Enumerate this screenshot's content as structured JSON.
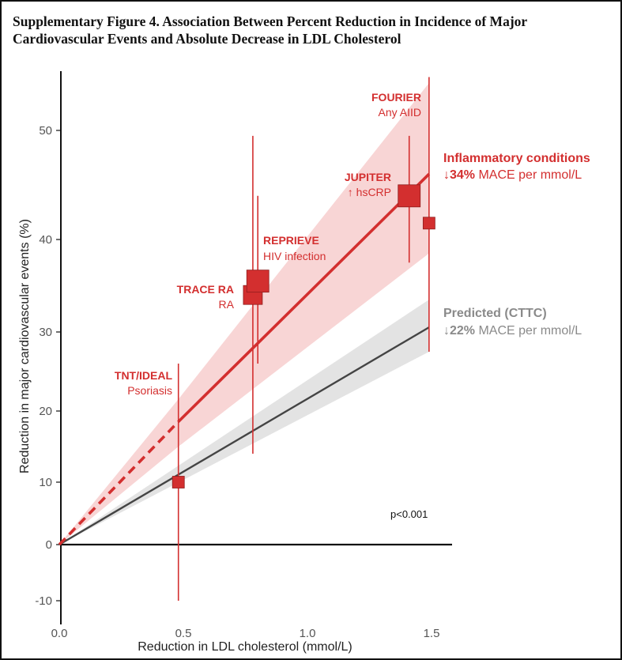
{
  "figure": {
    "title_line1": "Supplementary Figure 4. Association Between Percent Reduction in Incidence of Major",
    "title_line2": "Cardiovascular Events and Absolute Decrease in LDL Cholesterol"
  },
  "chart_data": {
    "type": "scatter",
    "xlabel": "Reduction in LDL cholesterol (mmol/L)",
    "ylabel": "Reduction in major cardiovascular events (%)",
    "xlim": [
      0.0,
      1.6
    ],
    "ylim": [
      -12,
      55
    ],
    "x_scale": "linear",
    "y_scale": "nonlinear (spacing compresses at higher values, as printed)",
    "x_ticks": [
      "0.0",
      "0.5",
      "1.0",
      "1.5"
    ],
    "y_ticks": [
      "-10",
      "0",
      "10",
      "20",
      "30",
      "40",
      "50"
    ],
    "grid": false,
    "colors": {
      "inflammatory": "#d32f2f",
      "predicted": "#444444",
      "band_red": "#f6caca",
      "band_grey": "#dedede"
    },
    "series": [
      {
        "name": "Inflammatory conditions",
        "style": "red regression line (dashed below x=0.48) with shaded confidence band",
        "line": [
          [
            0,
            0
          ],
          [
            0.48,
            18.5
          ],
          [
            1.49,
            46
          ]
        ],
        "band_upper": [
          [
            0.48,
            21.5
          ],
          [
            1.49,
            54
          ]
        ],
        "band_lower": [
          [
            0.48,
            15
          ],
          [
            1.49,
            38.5
          ]
        ]
      },
      {
        "name": "Predicted (CTTC)",
        "style": "dark grey regression line with grey confidence band",
        "line": [
          [
            0,
            0
          ],
          [
            1.49,
            30.5
          ]
        ],
        "band_upper": [
          [
            1.49,
            33.5
          ]
        ],
        "band_lower": [
          [
            1.49,
            27.5
          ]
        ]
      }
    ],
    "points": [
      {
        "x": 0.48,
        "y": 10.0,
        "lo": -10.0,
        "hi": 26.0,
        "size": "small"
      },
      {
        "x": 0.78,
        "y": 34.0,
        "lo": 14.0,
        "hi": 49.5,
        "size": "medium"
      },
      {
        "x": 0.8,
        "y": 35.5,
        "lo": 26.0,
        "hi": 44.0,
        "size": "large"
      },
      {
        "x": 1.41,
        "y": 44.0,
        "lo": 37.5,
        "hi": 49.5,
        "size": "large"
      },
      {
        "x": 1.49,
        "y": 41.5,
        "lo": 27.5,
        "hi": 54.5,
        "size": "small"
      }
    ],
    "annotations": {
      "tnt_ideal_name": "TNT/IDEAL",
      "tnt_ideal_sub": "Psoriasis",
      "trace_name": "TRACE RA",
      "trace_sub": "RA",
      "reprieve_name": "REPRIEVE",
      "reprieve_sub": "HIV infection",
      "jupiter_name": "JUPITER",
      "jupiter_sub": "↑ hsCRP",
      "fourier_name": "FOURIER",
      "fourier_sub": "Any AIID",
      "inflam_title": "Inflammatory conditions",
      "inflam_pct": "↓34%",
      "inflam_rest": " MACE per mmol/L",
      "pred_title": "Predicted (CTTC)",
      "pred_pct": "↓22%",
      "pred_rest": " MACE per mmol/L",
      "pvalue": "p<0.001"
    }
  }
}
